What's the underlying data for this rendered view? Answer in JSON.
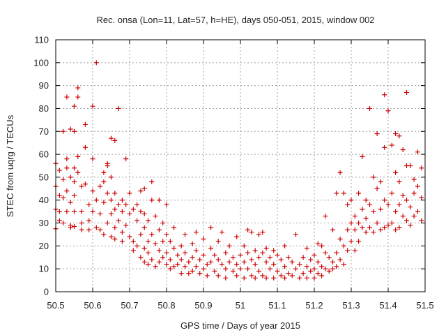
{
  "chart_data": {
    "type": "scatter",
    "title": "Rec. onsa (Lon=11, Lat=57, h=HE), days 050-051, 2015, window 002",
    "xlabel": "GPS time / Days of year 2015",
    "ylabel": "STEC from uqrg / TECUs",
    "xlim": [
      50.5,
      51.5
    ],
    "ylim": [
      0,
      110
    ],
    "xticks": [
      "50.5",
      "50.6",
      "50.7",
      "50.8",
      "50.9",
      "51",
      "51.1",
      "51.2",
      "51.3",
      "51.4",
      "51.5"
    ],
    "yticks": [
      "0",
      "10",
      "20",
      "30",
      "40",
      "50",
      "60",
      "70",
      "80",
      "90",
      "100",
      "110"
    ],
    "grid": true,
    "marker": "plus",
    "color": "#cc0000",
    "points": [
      [
        50.5,
        56
      ],
      [
        50.5,
        46
      ],
      [
        50.51,
        42
      ],
      [
        50.5,
        36
      ],
      [
        50.51,
        31
      ],
      [
        50.5,
        27.5
      ],
      [
        50.52,
        70
      ],
      [
        50.51,
        53
      ],
      [
        50.52,
        49
      ],
      [
        50.52,
        41
      ],
      [
        50.51,
        35
      ],
      [
        50.52,
        30
      ],
      [
        50.53,
        85
      ],
      [
        50.53,
        58
      ],
      [
        50.53,
        54
      ],
      [
        50.54,
        50
      ],
      [
        50.53,
        44
      ],
      [
        50.54,
        39
      ],
      [
        50.53,
        35
      ],
      [
        50.54,
        29
      ],
      [
        50.54,
        28
      ],
      [
        50.55,
        81
      ],
      [
        50.54,
        71
      ],
      [
        50.55,
        70
      ],
      [
        50.55,
        54
      ],
      [
        50.55,
        48
      ],
      [
        50.55,
        42
      ],
      [
        50.55,
        35
      ],
      [
        50.55,
        28.5
      ],
      [
        50.56,
        89
      ],
      [
        50.56,
        85
      ],
      [
        50.56,
        59
      ],
      [
        50.56,
        52
      ],
      [
        50.57,
        46
      ],
      [
        50.57,
        35
      ],
      [
        50.57,
        30
      ],
      [
        50.57,
        27
      ],
      [
        50.58,
        73
      ],
      [
        50.58,
        63
      ],
      [
        50.58,
        47
      ],
      [
        50.59,
        38
      ],
      [
        50.59,
        31
      ],
      [
        50.59,
        27
      ],
      [
        50.6,
        81
      ],
      [
        50.6,
        58
      ],
      [
        50.6,
        44
      ],
      [
        50.6,
        35
      ],
      [
        50.61,
        28
      ],
      [
        50.61,
        100
      ],
      [
        50.61,
        40
      ],
      [
        50.62,
        46
      ],
      [
        50.62,
        34
      ],
      [
        50.62,
        27
      ],
      [
        50.63,
        52
      ],
      [
        50.63,
        48
      ],
      [
        50.63,
        39
      ],
      [
        50.63,
        25
      ],
      [
        50.64,
        56
      ],
      [
        50.64,
        55
      ],
      [
        50.64,
        43
      ],
      [
        50.64,
        30
      ],
      [
        50.65,
        67
      ],
      [
        50.65,
        50
      ],
      [
        50.65,
        40
      ],
      [
        50.65,
        34
      ],
      [
        50.65,
        24
      ],
      [
        50.66,
        66
      ],
      [
        50.66,
        43
      ],
      [
        50.66,
        36
      ],
      [
        50.66,
        28
      ],
      [
        50.66,
        23
      ],
      [
        50.67,
        80
      ],
      [
        50.67,
        38
      ],
      [
        50.67,
        31
      ],
      [
        50.68,
        40
      ],
      [
        50.68,
        35
      ],
      [
        50.68,
        26
      ],
      [
        50.68,
        22
      ],
      [
        50.69,
        58
      ],
      [
        50.69,
        38
      ],
      [
        50.69,
        29
      ],
      [
        50.7,
        43
      ],
      [
        50.7,
        34
      ],
      [
        50.7,
        24
      ],
      [
        50.71,
        36
      ],
      [
        50.71,
        22
      ],
      [
        50.71,
        18
      ],
      [
        50.72,
        38
      ],
      [
        50.72,
        31
      ],
      [
        50.72,
        20
      ],
      [
        50.73,
        44
      ],
      [
        50.73,
        35
      ],
      [
        50.73,
        25
      ],
      [
        50.73,
        15
      ],
      [
        50.74,
        45
      ],
      [
        50.74,
        34
      ],
      [
        50.74,
        28
      ],
      [
        50.74,
        19
      ],
      [
        50.74,
        13
      ],
      [
        50.75,
        31
      ],
      [
        50.75,
        22
      ],
      [
        50.75,
        17
      ],
      [
        50.75,
        12
      ],
      [
        50.76,
        48
      ],
      [
        50.76,
        40
      ],
      [
        50.76,
        25
      ],
      [
        50.76,
        14
      ],
      [
        50.77,
        33
      ],
      [
        50.77,
        21
      ],
      [
        50.77,
        11
      ],
      [
        50.78,
        40
      ],
      [
        50.78,
        27
      ],
      [
        50.78,
        18
      ],
      [
        50.78,
        13
      ],
      [
        50.79,
        30
      ],
      [
        50.79,
        22
      ],
      [
        50.79,
        15
      ],
      [
        50.8,
        38
      ],
      [
        50.8,
        25
      ],
      [
        50.8,
        17
      ],
      [
        50.8,
        12
      ],
      [
        50.81,
        22
      ],
      [
        50.81,
        14
      ],
      [
        50.81,
        10
      ],
      [
        50.82,
        28
      ],
      [
        50.82,
        19
      ],
      [
        50.82,
        11
      ],
      [
        50.83,
        16
      ],
      [
        50.83,
        12
      ],
      [
        50.84,
        20
      ],
      [
        50.84,
        14
      ],
      [
        50.84,
        8
      ],
      [
        50.85,
        25
      ],
      [
        50.85,
        17
      ],
      [
        50.85,
        11
      ],
      [
        50.86,
        13
      ],
      [
        50.86,
        8
      ],
      [
        50.87,
        21
      ],
      [
        50.87,
        15
      ],
      [
        50.87,
        9
      ],
      [
        50.88,
        26
      ],
      [
        50.88,
        18
      ],
      [
        50.88,
        11
      ],
      [
        50.89,
        14
      ],
      [
        50.89,
        8
      ],
      [
        50.9,
        23
      ],
      [
        50.9,
        16
      ],
      [
        50.9,
        10
      ],
      [
        50.91,
        12
      ],
      [
        50.91,
        7
      ],
      [
        50.92,
        28
      ],
      [
        50.92,
        19
      ],
      [
        50.92,
        13
      ],
      [
        50.93,
        16
      ],
      [
        50.93,
        9
      ],
      [
        50.94,
        22
      ],
      [
        50.94,
        14
      ],
      [
        50.94,
        7
      ],
      [
        50.95,
        26
      ],
      [
        50.95,
        12
      ],
      [
        50.96,
        17
      ],
      [
        50.96,
        10
      ],
      [
        50.96,
        6
      ],
      [
        50.97,
        20
      ],
      [
        50.97,
        13
      ],
      [
        50.98,
        15
      ],
      [
        50.98,
        9
      ],
      [
        50.99,
        24
      ],
      [
        50.99,
        12
      ],
      [
        50.99,
        7
      ],
      [
        51.0,
        16
      ],
      [
        51.0,
        10
      ],
      [
        51.01,
        20
      ],
      [
        51.01,
        13
      ],
      [
        51.01,
        6
      ],
      [
        51.02,
        27
      ],
      [
        51.02,
        17
      ],
      [
        51.02,
        10
      ],
      [
        51.03,
        26
      ],
      [
        51.03,
        14
      ],
      [
        51.03,
        7
      ],
      [
        51.04,
        18
      ],
      [
        51.04,
        12
      ],
      [
        51.04,
        6
      ],
      [
        51.05,
        25
      ],
      [
        51.05,
        15
      ],
      [
        51.05,
        9
      ],
      [
        51.06,
        26
      ],
      [
        51.06,
        17
      ],
      [
        51.06,
        7
      ],
      [
        51.07,
        19
      ],
      [
        51.07,
        13
      ],
      [
        51.07,
        6
      ],
      [
        51.08,
        15
      ],
      [
        51.08,
        10
      ],
      [
        51.09,
        18
      ],
      [
        51.09,
        12
      ],
      [
        51.09,
        6
      ],
      [
        51.1,
        16
      ],
      [
        51.1,
        9
      ],
      [
        51.11,
        14
      ],
      [
        51.11,
        7
      ],
      [
        51.12,
        20
      ],
      [
        51.12,
        11
      ],
      [
        51.12,
        6
      ],
      [
        51.13,
        15
      ],
      [
        51.13,
        8
      ],
      [
        51.14,
        13
      ],
      [
        51.14,
        7
      ],
      [
        51.15,
        25
      ],
      [
        51.15,
        10
      ],
      [
        51.16,
        12
      ],
      [
        51.16,
        6
      ],
      [
        51.17,
        15
      ],
      [
        51.17,
        8
      ],
      [
        51.18,
        19
      ],
      [
        51.18,
        11
      ],
      [
        51.18,
        6
      ],
      [
        51.19,
        14
      ],
      [
        51.19,
        9
      ],
      [
        51.2,
        16
      ],
      [
        51.2,
        10
      ],
      [
        51.2,
        6
      ],
      [
        51.21,
        21
      ],
      [
        51.21,
        13
      ],
      [
        51.21,
        8
      ],
      [
        51.22,
        20
      ],
      [
        51.22,
        11
      ],
      [
        51.22,
        7
      ],
      [
        51.23,
        33
      ],
      [
        51.23,
        17
      ],
      [
        51.23,
        10
      ],
      [
        51.24,
        15
      ],
      [
        51.24,
        9
      ],
      [
        51.25,
        27
      ],
      [
        51.25,
        13
      ],
      [
        51.25,
        10
      ],
      [
        51.26,
        43
      ],
      [
        51.26,
        17
      ],
      [
        51.26,
        11
      ],
      [
        51.27,
        52
      ],
      [
        51.27,
        23
      ],
      [
        51.27,
        14
      ],
      [
        51.28,
        43
      ],
      [
        51.28,
        20
      ],
      [
        51.28,
        12
      ],
      [
        51.29,
        38
      ],
      [
        51.29,
        27
      ],
      [
        51.29,
        18
      ],
      [
        51.3,
        40
      ],
      [
        51.3,
        30
      ],
      [
        51.3,
        22
      ],
      [
        51.31,
        33
      ],
      [
        51.31,
        27
      ],
      [
        51.31,
        18
      ],
      [
        51.32,
        43
      ],
      [
        51.32,
        30
      ],
      [
        51.32,
        22
      ],
      [
        51.33,
        59
      ],
      [
        51.33,
        36
      ],
      [
        51.33,
        28
      ],
      [
        51.34,
        40
      ],
      [
        51.34,
        32
      ],
      [
        51.34,
        26
      ],
      [
        51.35,
        80
      ],
      [
        51.35,
        38
      ],
      [
        51.35,
        28
      ],
      [
        51.36,
        50
      ],
      [
        51.36,
        35
      ],
      [
        51.36,
        26
      ],
      [
        51.37,
        69
      ],
      [
        51.37,
        45
      ],
      [
        51.37,
        30
      ],
      [
        51.38,
        48
      ],
      [
        51.38,
        36
      ],
      [
        51.38,
        27
      ],
      [
        51.39,
        86
      ],
      [
        51.39,
        63
      ],
      [
        51.39,
        40
      ],
      [
        51.39,
        28
      ],
      [
        51.4,
        79
      ],
      [
        51.4,
        38
      ],
      [
        51.4,
        29
      ],
      [
        51.41,
        64
      ],
      [
        51.41,
        43
      ],
      [
        51.41,
        30
      ],
      [
        51.42,
        69
      ],
      [
        51.42,
        52
      ],
      [
        51.42,
        35
      ],
      [
        51.42,
        27
      ],
      [
        51.43,
        68
      ],
      [
        51.43,
        48
      ],
      [
        51.43,
        38
      ],
      [
        51.43,
        28
      ],
      [
        51.44,
        62
      ],
      [
        51.44,
        42
      ],
      [
        51.44,
        33
      ],
      [
        51.45,
        87
      ],
      [
        51.45,
        55
      ],
      [
        51.45,
        40
      ],
      [
        51.45,
        31
      ],
      [
        51.46,
        55
      ],
      [
        51.46,
        37
      ],
      [
        51.46,
        29
      ],
      [
        51.47,
        49
      ],
      [
        51.47,
        43
      ],
      [
        51.47,
        33
      ],
      [
        51.48,
        61
      ],
      [
        51.48,
        46
      ],
      [
        51.48,
        35
      ],
      [
        51.49,
        54
      ],
      [
        51.49,
        41
      ],
      [
        51.49,
        31
      ]
    ]
  }
}
